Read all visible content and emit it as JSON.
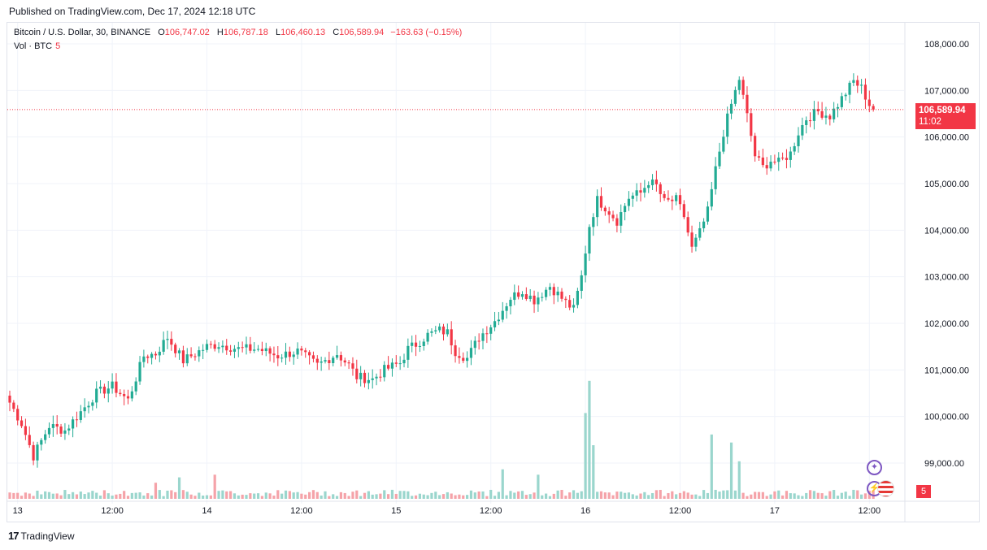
{
  "header": {
    "published": "Published on TradingView.com, Dec 17, 2024 12:18 UTC"
  },
  "legend": {
    "symbol": "Bitcoin / U.S. Dollar, 30, BINANCE",
    "o_label": "O",
    "o_value": "106,747.02",
    "h_label": "H",
    "h_value": "106,787.18",
    "l_label": "L",
    "l_value": "106,460.13",
    "c_label": "C",
    "c_value": "106,589.94",
    "change": "−163.63 (−0.15%)",
    "volume_label": "Vol · BTC",
    "volume_value": "5"
  },
  "last_price": {
    "value": "106,589.94",
    "countdown": "11:02"
  },
  "volume_tag": "5",
  "footer": {
    "logo_mark": "17",
    "brand": "TradingView"
  },
  "icons": [
    "sparkle-icon",
    "lightning-icon",
    "us-flag-icon"
  ],
  "colors": {
    "up": "#22ab94",
    "down": "#f23645",
    "up_vol": "#9ad6cd",
    "down_vol": "#f5a3a9",
    "grid": "#f0f3fa"
  },
  "chart_data": {
    "type": "candlestick",
    "ylim": [
      98600,
      108300
    ],
    "y_ticks": [
      "99,000.00",
      "100,000.00",
      "101,000.00",
      "102,000.00",
      "103,000.00",
      "104,000.00",
      "105,000.00",
      "106,000.00",
      "107,000.00",
      "108,000.00"
    ],
    "y_tick_values": [
      99000,
      100000,
      101000,
      102000,
      103000,
      104000,
      105000,
      106000,
      107000,
      108000
    ],
    "x_labels": [
      {
        "label": "13",
        "index": 2
      },
      {
        "label": "12:00",
        "index": 26
      },
      {
        "label": "14",
        "index": 50
      },
      {
        "label": "12:00",
        "index": 74
      },
      {
        "label": "15",
        "index": 98
      },
      {
        "label": "12:00",
        "index": 122
      },
      {
        "label": "16",
        "index": 146
      },
      {
        "label": "12:00",
        "index": 170
      },
      {
        "label": "17",
        "index": 194
      },
      {
        "label": "12:00",
        "index": 218
      }
    ],
    "close_waypoints": [
      [
        0,
        100300
      ],
      [
        3,
        99850
      ],
      [
        6,
        99150
      ],
      [
        10,
        99800
      ],
      [
        14,
        99700
      ],
      [
        18,
        100100
      ],
      [
        22,
        100500
      ],
      [
        26,
        100650
      ],
      [
        30,
        100350
      ],
      [
        34,
        101300
      ],
      [
        37,
        101350
      ],
      [
        40,
        101700
      ],
      [
        44,
        101200
      ],
      [
        50,
        101500
      ],
      [
        53,
        101550
      ],
      [
        58,
        101450
      ],
      [
        63,
        101450
      ],
      [
        68,
        101300
      ],
      [
        73,
        101400
      ],
      [
        78,
        101100
      ],
      [
        83,
        101350
      ],
      [
        86,
        101100
      ],
      [
        88,
        100850
      ],
      [
        92,
        100800
      ],
      [
        95,
        101000
      ],
      [
        99,
        101150
      ],
      [
        101,
        101450
      ],
      [
        103,
        101550
      ],
      [
        106,
        101750
      ],
      [
        109,
        101850
      ],
      [
        111,
        101800
      ],
      [
        113,
        101400
      ],
      [
        116,
        101250
      ],
      [
        119,
        101700
      ],
      [
        123,
        102050
      ],
      [
        127,
        102550
      ],
      [
        130,
        102700
      ],
      [
        133,
        102500
      ],
      [
        137,
        102800
      ],
      [
        141,
        102450
      ],
      [
        143,
        102300
      ],
      [
        145,
        103000
      ],
      [
        147,
        104100
      ],
      [
        149,
        104650
      ],
      [
        151,
        104500
      ],
      [
        154,
        104200
      ],
      [
        157,
        104700
      ],
      [
        160,
        104800
      ],
      [
        162,
        105050
      ],
      [
        164,
        104950
      ],
      [
        166,
        104600
      ],
      [
        169,
        104650
      ],
      [
        171,
        104300
      ],
      [
        173,
        103600
      ],
      [
        175,
        103950
      ],
      [
        177,
        104400
      ],
      [
        179,
        105300
      ],
      [
        181,
        106100
      ],
      [
        183,
        106700
      ],
      [
        185,
        107250
      ],
      [
        187,
        106450
      ],
      [
        189,
        105600
      ],
      [
        191,
        105350
      ],
      [
        193,
        105500
      ],
      [
        195,
        105450
      ],
      [
        198,
        105650
      ],
      [
        200,
        106100
      ],
      [
        202,
        106400
      ],
      [
        205,
        106550
      ],
      [
        208,
        106450
      ],
      [
        210,
        106700
      ],
      [
        212,
        106950
      ],
      [
        214,
        107200
      ],
      [
        216,
        107050
      ],
      [
        218,
        106700
      ],
      [
        219,
        106590
      ]
    ],
    "candle_count": 220,
    "volume_highlights": [
      [
        146,
        1.6
      ],
      [
        147,
        2.2
      ],
      [
        148,
        1.0
      ],
      [
        178,
        1.2
      ],
      [
        183,
        1.05
      ],
      [
        185,
        0.7
      ],
      [
        37,
        0.3
      ],
      [
        43,
        0.4
      ],
      [
        52,
        0.45
      ],
      [
        125,
        0.55
      ],
      [
        134,
        0.45
      ]
    ]
  }
}
